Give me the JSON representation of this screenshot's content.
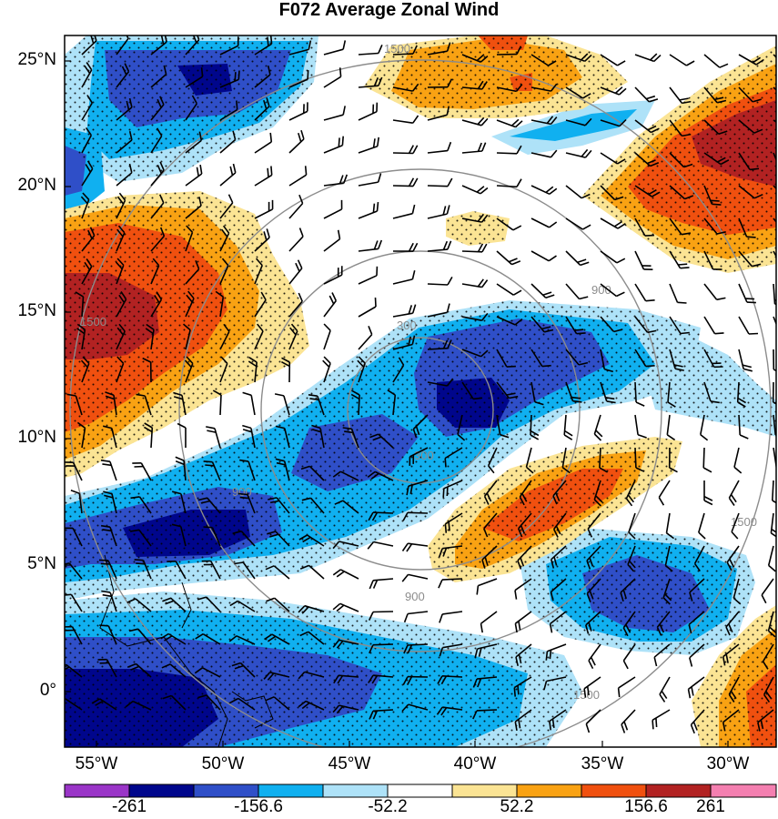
{
  "title": "F072 Average Zonal Wind",
  "lat_labels": [
    "25°N",
    "20°N",
    "15°N",
    "10°N",
    "5°N",
    "0°"
  ],
  "lon_labels": [
    "55°W",
    "50°W",
    "45°W",
    "40°W",
    "35°W",
    "30°W"
  ],
  "colorbar": {
    "labels": [
      "-261",
      "-156.6",
      "-52.2",
      "52.2",
      "156.6",
      "261"
    ],
    "colors": [
      "#9a35c8",
      "#00068c",
      "#2f4fc8",
      "#10b0f0",
      "#aee2f8",
      "#ffffff",
      "#fbe494",
      "#f9a213",
      "#f0500f",
      "#b22222",
      "#f47fb0"
    ]
  },
  "ring_labels": [
    "300",
    "900",
    "1500"
  ],
  "palette": {
    "strong_neg": "#00068c",
    "neg": "#2f4fc8",
    "mid_neg": "#10b0f0",
    "weak_neg": "#aee2f8",
    "weak_pos": "#fbe494",
    "pos": "#f9a213",
    "mid_pos": "#f0500f",
    "strong_pos": "#b22222"
  }
}
